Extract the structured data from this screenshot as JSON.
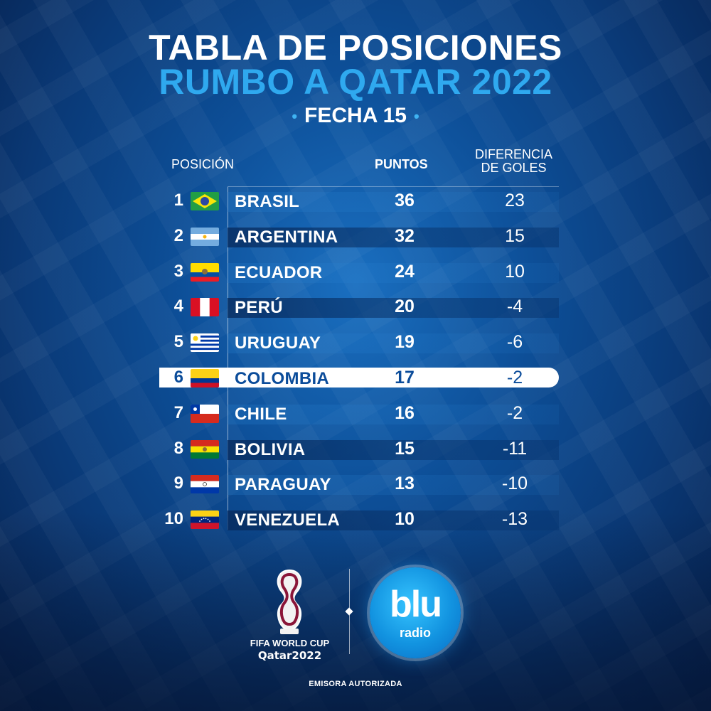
{
  "header": {
    "title_line1": "TABLA DE POSICIONES",
    "title_line2": "RUMBO A QATAR 2022",
    "subtitle": "FECHA 15",
    "subtitle_dot": "•"
  },
  "table": {
    "columns": {
      "position": "POSICIÓN",
      "points": "PUNTOS",
      "goal_diff_line1": "DIFERENCIA",
      "goal_diff_line2": "DE GOLES"
    },
    "highlighted_team": "COLOMBIA",
    "rows": [
      {
        "pos": "1",
        "team": "BRASIL",
        "flag": "brazil-flag-icon",
        "pts": "36",
        "dif": "23"
      },
      {
        "pos": "2",
        "team": "ARGENTINA",
        "flag": "argentina-flag-icon",
        "pts": "32",
        "dif": "15"
      },
      {
        "pos": "3",
        "team": "ECUADOR",
        "flag": "ecuador-flag-icon",
        "pts": "24",
        "dif": "10"
      },
      {
        "pos": "4",
        "team": "PERÚ",
        "flag": "peru-flag-icon",
        "pts": "20",
        "dif": "-4"
      },
      {
        "pos": "5",
        "team": "URUGUAY",
        "flag": "uruguay-flag-icon",
        "pts": "19",
        "dif": "-6"
      },
      {
        "pos": "6",
        "team": "COLOMBIA",
        "flag": "colombia-flag-icon",
        "pts": "17",
        "dif": "-2"
      },
      {
        "pos": "7",
        "team": "CHILE",
        "flag": "chile-flag-icon",
        "pts": "16",
        "dif": "-2"
      },
      {
        "pos": "8",
        "team": "BOLIVIA",
        "flag": "bolivia-flag-icon",
        "pts": "15",
        "dif": "-11"
      },
      {
        "pos": "9",
        "team": "PARAGUAY",
        "flag": "paraguay-flag-icon",
        "pts": "13",
        "dif": "-10"
      },
      {
        "pos": "10",
        "team": "VENEZUELA",
        "flag": "venezuela-flag-icon",
        "pts": "10",
        "dif": "-13"
      }
    ]
  },
  "logos": {
    "worldcup_line1": "FIFA WORLD CUP",
    "worldcup_line2": "Qatar2022",
    "radio_name": "blu",
    "radio_sub": "radio"
  },
  "footer": {
    "text": "EMISORA AUTORIZADA"
  },
  "colors": {
    "accent": "#2fa9ef",
    "highlight_text": "#0b4c9a",
    "background": "#0d4f98"
  }
}
